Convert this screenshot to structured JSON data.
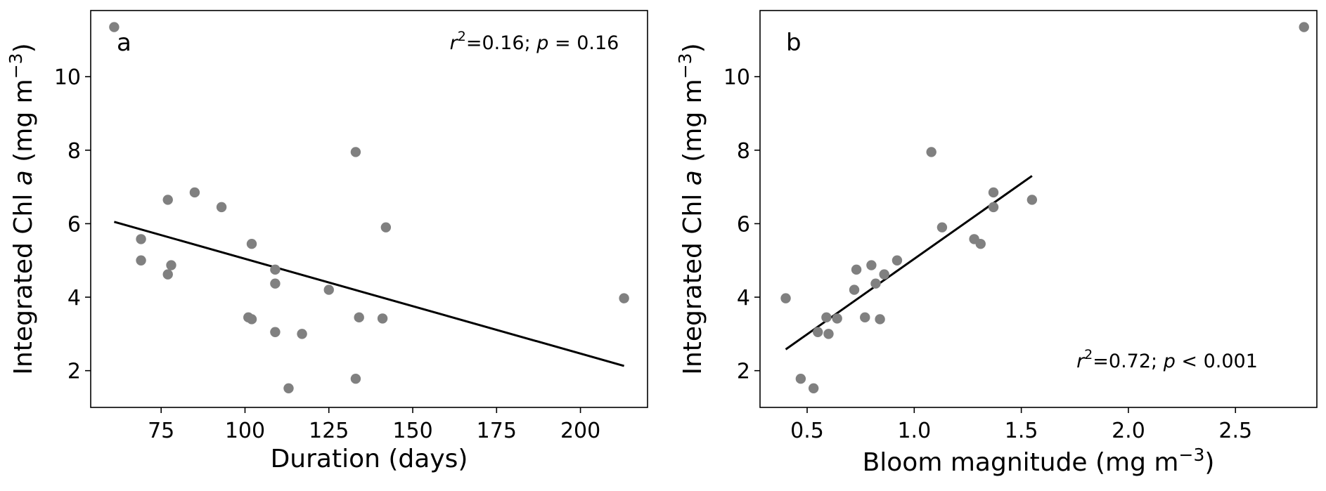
{
  "chart_data": [
    {
      "type": "scatter",
      "panel_label": "a",
      "xlabel": "Duration (days)",
      "ylabel_parts": [
        "Integrated Chl ",
        "a",
        " (mg m",
        "−3",
        ")"
      ],
      "stat_parts": [
        "r",
        "2",
        "=0.16; ",
        "p",
        " = 0.16"
      ],
      "xlim": [
        54,
        220
      ],
      "ylim": [
        1.0,
        11.8
      ],
      "xticks": [
        75,
        100,
        125,
        150,
        175,
        200
      ],
      "xtick_labels": [
        "75",
        "100",
        "125",
        "150",
        "175",
        "200"
      ],
      "yticks": [
        2,
        4,
        6,
        8,
        10
      ],
      "ytick_labels": [
        "2",
        "4",
        "6",
        "8",
        "10"
      ],
      "points": [
        [
          61,
          11.35
        ],
        [
          69,
          5.58
        ],
        [
          69,
          5.0
        ],
        [
          77,
          6.65
        ],
        [
          77,
          4.62
        ],
        [
          78,
          4.87
        ],
        [
          85,
          6.85
        ],
        [
          93,
          6.45
        ],
        [
          101,
          3.45
        ],
        [
          102,
          5.45
        ],
        [
          102,
          3.4
        ],
        [
          109,
          4.75
        ],
        [
          109,
          4.37
        ],
        [
          109,
          3.05
        ],
        [
          113,
          1.52
        ],
        [
          117,
          3.0
        ],
        [
          125,
          4.2
        ],
        [
          133,
          7.95
        ],
        [
          133,
          1.78
        ],
        [
          134,
          3.45
        ],
        [
          141,
          3.42
        ],
        [
          142,
          5.9
        ],
        [
          213,
          3.97
        ]
      ],
      "fit_line": [
        [
          61,
          6.05
        ],
        [
          213,
          2.13
        ]
      ],
      "colors": {
        "points": "#808080",
        "fit": "#000000"
      }
    },
    {
      "type": "scatter",
      "panel_label": "b",
      "xlabel_parts": [
        "Bloom magnitude (mg m",
        "−3",
        ")"
      ],
      "ylabel_parts": [
        "Integrated Chl ",
        "a",
        " (mg m",
        "−3",
        ")"
      ],
      "stat_parts": [
        "r",
        "2",
        "=0.72; ",
        "p",
        " < 0.001"
      ],
      "xlim": [
        0.28,
        2.88
      ],
      "ylim": [
        1.0,
        11.8
      ],
      "xticks": [
        0.5,
        1.0,
        1.5,
        2.0,
        2.5
      ],
      "xtick_labels": [
        "0.5",
        "1.0",
        "1.5",
        "2.0",
        "2.5"
      ],
      "yticks": [
        2,
        4,
        6,
        8,
        10
      ],
      "ytick_labels": [
        "2",
        "4",
        "6",
        "8",
        "10"
      ],
      "points": [
        [
          2.82,
          11.35
        ],
        [
          0.4,
          3.97
        ],
        [
          0.47,
          1.78
        ],
        [
          0.53,
          1.52
        ],
        [
          0.55,
          3.05
        ],
        [
          0.59,
          3.45
        ],
        [
          0.6,
          3.0
        ],
        [
          0.64,
          3.42
        ],
        [
          0.72,
          4.2
        ],
        [
          0.73,
          4.75
        ],
        [
          0.77,
          3.45
        ],
        [
          0.8,
          4.87
        ],
        [
          0.82,
          4.37
        ],
        [
          0.84,
          3.4
        ],
        [
          0.86,
          4.62
        ],
        [
          0.92,
          5.0
        ],
        [
          1.08,
          7.95
        ],
        [
          1.13,
          5.9
        ],
        [
          1.28,
          5.58
        ],
        [
          1.31,
          5.45
        ],
        [
          1.37,
          6.45
        ],
        [
          1.37,
          6.85
        ],
        [
          1.55,
          6.65
        ]
      ],
      "fit_line": [
        [
          0.4,
          2.58
        ],
        [
          1.55,
          7.3
        ]
      ],
      "colors": {
        "points": "#808080",
        "fit": "#000000"
      }
    }
  ]
}
